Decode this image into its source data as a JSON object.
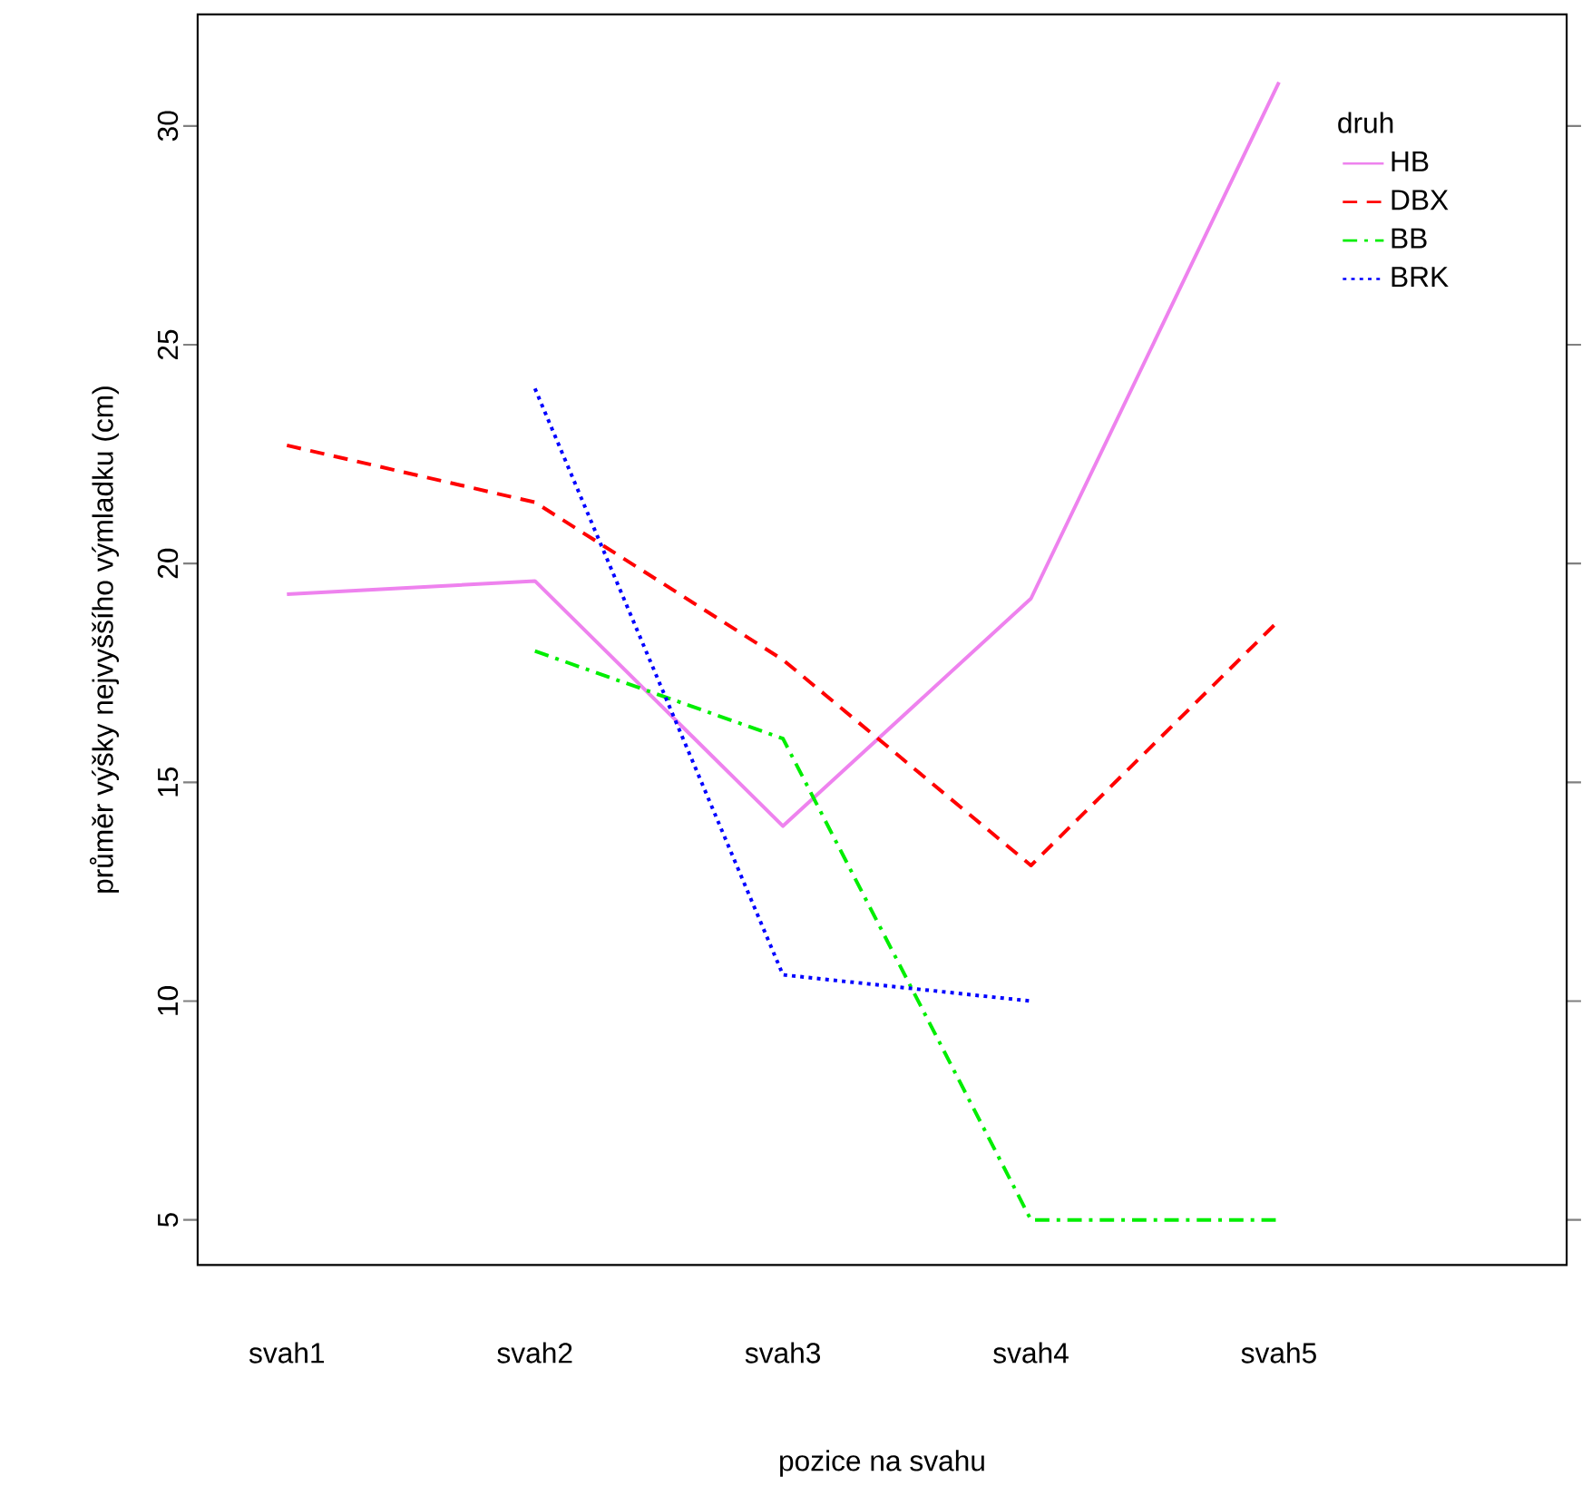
{
  "chart_data": {
    "type": "line",
    "xlabel": "pozice na svahu",
    "ylabel": "průměr výšky nejvyššího výmladku (cm)",
    "legend_title": "druh",
    "legend": "top right",
    "categories": [
      "svah1",
      "svah2",
      "svah3",
      "svah4",
      "svah5"
    ],
    "ylim": [
      3.97,
      32.55
    ],
    "yticks": [
      5,
      10,
      15,
      20,
      25,
      30
    ],
    "series": [
      {
        "name": "HB",
        "color": "#ee82ee",
        "line_style": "solid",
        "values": [
          19.3,
          19.6,
          14.0,
          19.2,
          31.0
        ]
      },
      {
        "name": "DBX",
        "color": "#ff0000",
        "line_style": "dashed",
        "values": [
          22.7,
          21.4,
          17.8,
          13.1,
          18.7
        ]
      },
      {
        "name": "BB",
        "color": "#00ee00",
        "line_style": "dashdot",
        "values": [
          null,
          18.0,
          16.0,
          5,
          5
        ]
      },
      {
        "name": "BRK",
        "color": "#0000ff",
        "line_style": "dotted",
        "values": [
          null,
          24.0,
          10.6,
          10.0,
          null
        ]
      }
    ]
  }
}
